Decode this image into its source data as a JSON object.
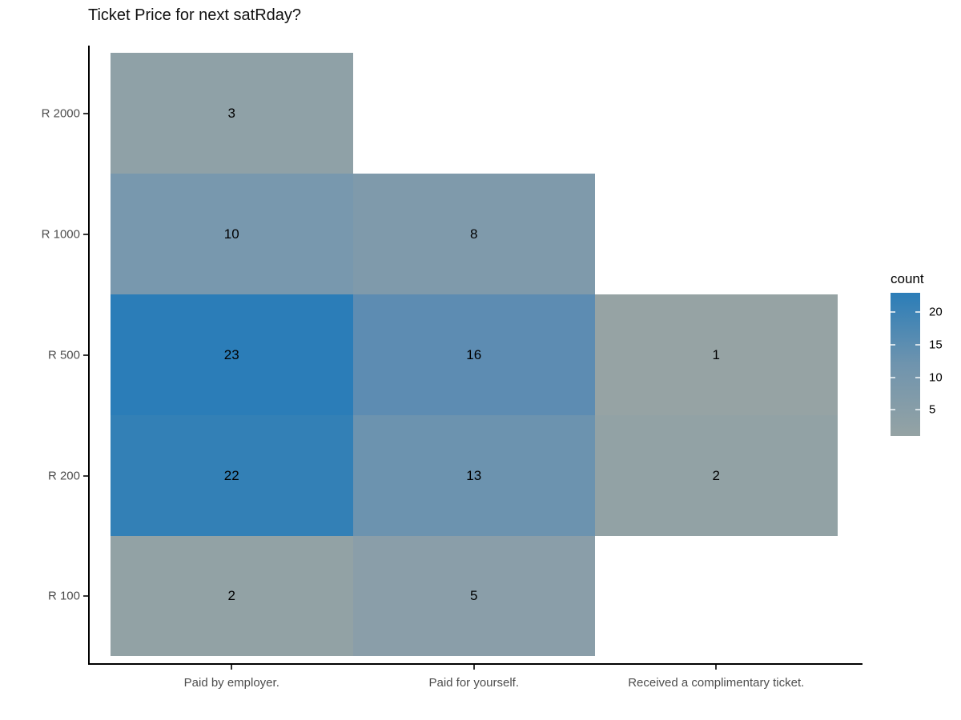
{
  "title": "Ticket Price for next satRday?",
  "chart_data": {
    "type": "heatmap",
    "title": "Ticket Price for next satRday?",
    "x_categories": [
      "Paid by employer.",
      "Paid for yourself.",
      "Received a complimentary ticket."
    ],
    "y_categories": [
      "R 2000",
      "R 1000",
      "R 500",
      "R 200",
      "R 100"
    ],
    "cells": [
      {
        "y": "R 2000",
        "x": "Paid by employer.",
        "count": 3,
        "color": "#8fa1a7"
      },
      {
        "y": "R 1000",
        "x": "Paid by employer.",
        "count": 10,
        "color": "#7898ae"
      },
      {
        "y": "R 1000",
        "x": "Paid for yourself.",
        "count": 8,
        "color": "#7f9aab"
      },
      {
        "y": "R 500",
        "x": "Paid by employer.",
        "count": 23,
        "color": "#2b7db8"
      },
      {
        "y": "R 500",
        "x": "Paid for yourself.",
        "count": 16,
        "color": "#5d8cb2"
      },
      {
        "y": "R 500",
        "x": "Received a complimentary ticket.",
        "count": 1,
        "color": "#96a3a4"
      },
      {
        "y": "R 200",
        "x": "Paid by employer.",
        "count": 22,
        "color": "#3380b6"
      },
      {
        "y": "R 200",
        "x": "Paid for yourself.",
        "count": 13,
        "color": "#6c93af"
      },
      {
        "y": "R 200",
        "x": "Received a complimentary ticket.",
        "count": 2,
        "color": "#92a2a5"
      },
      {
        "y": "R 100",
        "x": "Paid by employer.",
        "count": 2,
        "color": "#92a2a5"
      },
      {
        "y": "R 100",
        "x": "Paid for yourself.",
        "count": 5,
        "color": "#8a9ea9"
      }
    ],
    "legend": {
      "title": "count",
      "ticks": [
        20,
        15,
        10,
        5
      ],
      "limits": [
        1,
        23
      ],
      "color_low": "#95a3a4",
      "color_mid": "#6f94ae",
      "color_high": "#2b7db8",
      "position": "right"
    },
    "grid": "off",
    "axis_lines": "black"
  }
}
